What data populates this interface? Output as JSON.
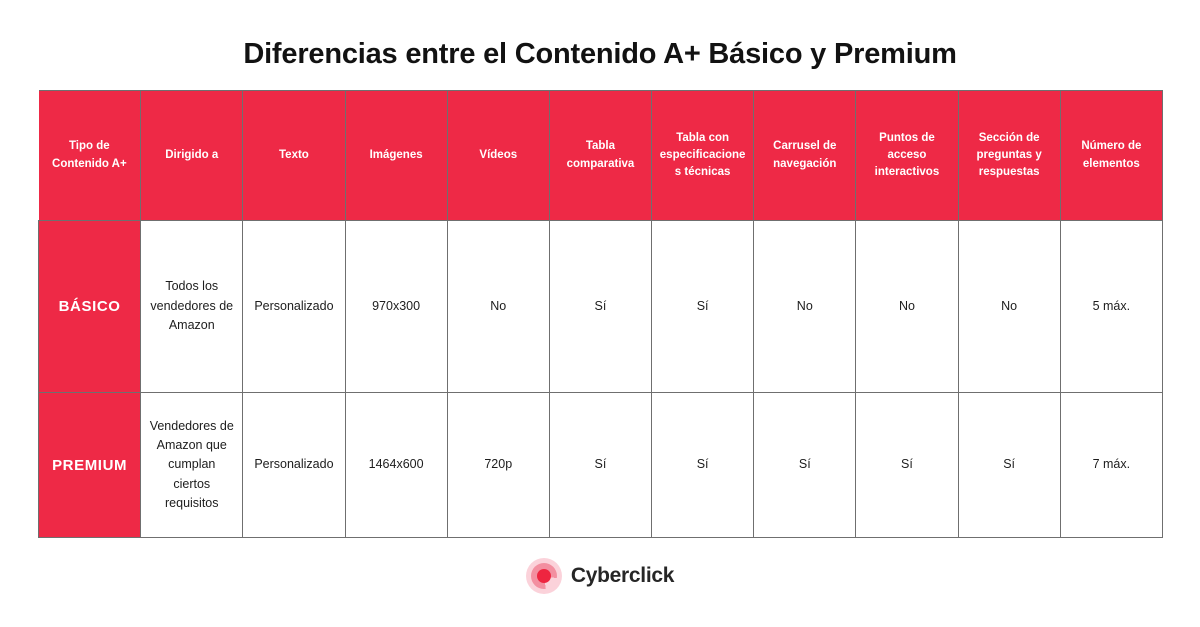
{
  "page": {
    "title": "Diferencias entre el Contenido A+ Básico y Premium"
  },
  "colors": {
    "brand_red": "#ee2946",
    "grid_border": "#6f6f6f",
    "header_text": "#ffffff",
    "cell_text": "#1d1d1d",
    "logo_outer_pink": "#fbd2da",
    "logo_mid_pink": "#f38fa0",
    "logo_dot_red": "#ee2540"
  },
  "table": {
    "columns": [
      "Tipo de Contenido A+",
      "Dirigido a",
      "Texto",
      "Imágenes",
      "Vídeos",
      "Tabla comparativa",
      "Tabla con especificaciones técnicas",
      "Carrusel de navegación",
      "Puntos de acceso interactivos",
      "Sección de preguntas y respuestas",
      "Número de elementos"
    ],
    "rows": [
      {
        "label": "BÁSICO",
        "cells": [
          "Todos los vendedores de Amazon",
          "Personalizado",
          "970x300",
          "No",
          "Sí",
          "Sí",
          "No",
          "No",
          "No",
          "5 máx."
        ]
      },
      {
        "label": "PREMIUM",
        "cells": [
          "Vendedores de Amazon que cumplan ciertos requisitos",
          "Personalizado",
          "1464x600",
          "720p",
          "Sí",
          "Sí",
          "Sí",
          "Sí",
          "Sí",
          "7 máx."
        ]
      }
    ]
  },
  "footer": {
    "brand_name": "Cyberclick"
  },
  "chart_data": {
    "type": "table",
    "title": "Diferencias entre el Contenido A+ Básico y Premium",
    "columns": [
      "Tipo de Contenido A+",
      "Dirigido a",
      "Texto",
      "Imágenes",
      "Vídeos",
      "Tabla comparativa",
      "Tabla con especificaciones técnicas",
      "Carrusel de navegación",
      "Puntos de acceso interactivos",
      "Sección de preguntas y respuestas",
      "Número de elementos"
    ],
    "rows": [
      [
        "BÁSICO",
        "Todos los vendedores de Amazon",
        "Personalizado",
        "970x300",
        "No",
        "Sí",
        "Sí",
        "No",
        "No",
        "No",
        "5 máx."
      ],
      [
        "PREMIUM",
        "Vendedores de Amazon que cumplan ciertos requisitos",
        "Personalizado",
        "1464x600",
        "720p",
        "Sí",
        "Sí",
        "Sí",
        "Sí",
        "Sí",
        "7 máx."
      ]
    ]
  }
}
